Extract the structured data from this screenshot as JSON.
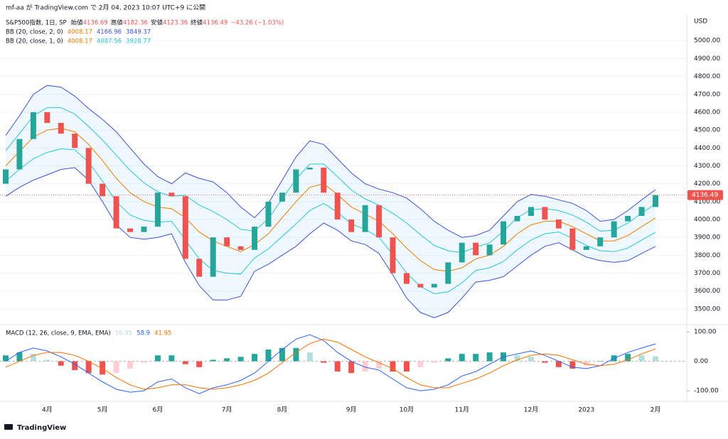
{
  "header": {
    "published": "mf-aa が TradingView.com で 2月 04, 2023 10:07 UTC+9 に公開"
  },
  "footer": {
    "brand": "TradingView"
  },
  "chart_data": [
    {
      "type": "candlestick",
      "title": "S&P500指数, 1日, SP",
      "ohlc": {
        "labels": [
          "始値",
          "高値",
          "安値",
          "終値"
        ],
        "values": [
          4136.69,
          4182.36,
          4123.36,
          4136.49
        ]
      },
      "change": "−43.26 (−1.03%)",
      "currency": "USD",
      "categories": [
        null,
        null,
        null,
        "4月",
        null,
        null,
        null,
        "5月",
        null,
        null,
        null,
        "6月",
        null,
        null,
        null,
        null,
        "7月",
        null,
        null,
        null,
        "8月",
        null,
        null,
        null,
        null,
        "9月",
        null,
        null,
        null,
        "10月",
        null,
        null,
        null,
        "11月",
        null,
        null,
        null,
        null,
        "12月",
        null,
        null,
        null,
        "2023",
        null,
        null,
        null,
        null,
        "2月"
      ],
      "open": [
        4200,
        4280,
        4450,
        4600,
        4540,
        4480,
        4400,
        4200,
        4130,
        3950,
        3930,
        3960,
        4150,
        4130,
        3780,
        3680,
        3900,
        3850,
        3830,
        3960,
        4100,
        4150,
        4280,
        4290,
        4150,
        4000,
        3930,
        4080,
        3900,
        3700,
        3640,
        3620,
        3640,
        3760,
        3870,
        3800,
        3860,
        3990,
        4020,
        4070,
        4000,
        3950,
        3830,
        3850,
        3900,
        3990,
        4020,
        4070
      ],
      "close": [
        4280,
        4450,
        4600,
        4540,
        4480,
        4400,
        4200,
        4130,
        3950,
        3930,
        3960,
        4150,
        4130,
        3780,
        3680,
        3900,
        3850,
        3830,
        3960,
        4100,
        4150,
        4280,
        4290,
        4150,
        4000,
        3930,
        4080,
        3900,
        3700,
        3640,
        3620,
        3640,
        3760,
        3870,
        3800,
        3860,
        3990,
        4020,
        4070,
        4000,
        3950,
        3830,
        3850,
        3900,
        3990,
        4020,
        4070,
        4136.49
      ],
      "up_color": "#26a69a",
      "down_color": "#ef5350",
      "middle": [
        4300,
        4380,
        4460,
        4500,
        4510,
        4490,
        4420,
        4330,
        4230,
        4150,
        4100,
        4070,
        4060,
        4010,
        3930,
        3880,
        3850,
        3820,
        3860,
        3920,
        4010,
        4100,
        4180,
        4200,
        4140,
        4070,
        4030,
        3990,
        3920,
        3840,
        3770,
        3720,
        3710,
        3730,
        3780,
        3800,
        3850,
        3920,
        3970,
        3990,
        3990,
        3960,
        3920,
        3880,
        3880,
        3910,
        3960,
        4008.17
      ],
      "middle_color": "#f57c00",
      "bands": [
        {
          "name": "BB (20, close, 2, 0)",
          "color": "#3f51d8",
          "upper": [
            4470,
            4580,
            4700,
            4750,
            4740,
            4690,
            4620,
            4560,
            4490,
            4400,
            4310,
            4240,
            4200,
            4260,
            4230,
            4210,
            4150,
            4070,
            4010,
            4090,
            4220,
            4350,
            4440,
            4420,
            4340,
            4260,
            4200,
            4170,
            4150,
            4120,
            4060,
            3990,
            3940,
            3900,
            3910,
            3940,
            4020,
            4100,
            4140,
            4130,
            4110,
            4090,
            4050,
            3990,
            4000,
            4050,
            4110,
            4166.96
          ],
          "lower": [
            4130,
            4180,
            4220,
            4250,
            4280,
            4290,
            4220,
            4100,
            3970,
            3900,
            3890,
            3900,
            3920,
            3760,
            3630,
            3550,
            3550,
            3570,
            3710,
            3750,
            3800,
            3850,
            3920,
            3980,
            3940,
            3880,
            3860,
            3810,
            3690,
            3560,
            3480,
            3450,
            3480,
            3560,
            3650,
            3660,
            3680,
            3740,
            3800,
            3850,
            3870,
            3830,
            3790,
            3770,
            3760,
            3770,
            3810,
            3849.37
          ]
        },
        {
          "name": "BB (20, close, 1, 0)",
          "color": "#26c6da",
          "upper": [
            4385,
            4480,
            4580,
            4625,
            4625,
            4590,
            4520,
            4445,
            4360,
            4275,
            4205,
            4155,
            4130,
            4135,
            4080,
            4045,
            4000,
            3945,
            3935,
            4005,
            4115,
            4225,
            4310,
            4310,
            4240,
            4165,
            4115,
            4080,
            4035,
            3980,
            3915,
            3855,
            3825,
            3815,
            3845,
            3870,
            3935,
            4010,
            4055,
            4060,
            4050,
            4025,
            3985,
            3935,
            3940,
            3980,
            4035,
            4087.56
          ],
          "lower": [
            4215,
            4280,
            4340,
            4375,
            4395,
            4390,
            4320,
            4215,
            4100,
            4025,
            3995,
            3985,
            3990,
            3885,
            3780,
            3715,
            3700,
            3695,
            3785,
            3835,
            3905,
            3975,
            4050,
            4090,
            4040,
            3975,
            3945,
            3900,
            3805,
            3700,
            3625,
            3585,
            3595,
            3645,
            3715,
            3730,
            3765,
            3830,
            3885,
            3920,
            3930,
            3895,
            3855,
            3825,
            3820,
            3840,
            3885,
            3928.77
          ]
        }
      ],
      "ylim": [
        3420,
        5140
      ],
      "yticks": [
        {
          "value": 3500,
          "label": "3500.00"
        },
        {
          "value": 3600,
          "label": "3600.00"
        },
        {
          "value": 3700,
          "label": "3700.00"
        },
        {
          "value": 3800,
          "label": "3800.00"
        },
        {
          "value": 3900,
          "label": "3900.00"
        },
        {
          "value": 4000,
          "label": "4000.00"
        },
        {
          "value": 4100,
          "label": "4100.00"
        },
        {
          "value": 4200,
          "label": "4200.00"
        },
        {
          "value": 4300,
          "label": "4300.00"
        },
        {
          "value": 4400,
          "label": "4400.00"
        },
        {
          "value": 4500,
          "label": "4500.00"
        },
        {
          "value": 4600,
          "label": "4600.00"
        },
        {
          "value": 4700,
          "label": "4700.00"
        },
        {
          "value": 4800,
          "label": "4800.00"
        },
        {
          "value": 4900,
          "label": "4900.00"
        },
        {
          "value": 5000,
          "label": "5000.00"
        }
      ],
      "grid": true
    },
    {
      "type": "macd",
      "title": "MACD (12, 26, close, 9, EMA, EMA)",
      "histogram": [
        20,
        30,
        25,
        5,
        -15,
        -30,
        -40,
        -45,
        -40,
        -25,
        -5,
        20,
        20,
        -10,
        -20,
        5,
        10,
        15,
        25,
        40,
        45,
        45,
        30,
        -5,
        -35,
        -40,
        -35,
        -25,
        -35,
        -35,
        -20,
        -5,
        10,
        25,
        25,
        30,
        30,
        20,
        15,
        -5,
        -20,
        -25,
        -15,
        0,
        20,
        25,
        20,
        16.95
      ],
      "macd": [
        0,
        30,
        45,
        35,
        15,
        -10,
        -40,
        -70,
        -95,
        -105,
        -100,
        -70,
        -60,
        -90,
        -110,
        -90,
        -80,
        -65,
        -40,
        0,
        40,
        75,
        90,
        70,
        30,
        0,
        -20,
        -30,
        -60,
        -90,
        -100,
        -95,
        -80,
        -50,
        -35,
        -10,
        15,
        25,
        35,
        20,
        0,
        -20,
        -25,
        -15,
        10,
        30,
        45,
        58.9
      ],
      "signal": [
        -20,
        0,
        20,
        30,
        30,
        20,
        0,
        -25,
        -55,
        -80,
        -95,
        -90,
        -80,
        -80,
        -90,
        -95,
        -90,
        -80,
        -65,
        -40,
        -5,
        30,
        60,
        75,
        65,
        40,
        15,
        -5,
        -25,
        -55,
        -80,
        -90,
        -90,
        -75,
        -60,
        -40,
        -15,
        5,
        20,
        25,
        20,
        5,
        -10,
        -15,
        -10,
        5,
        25,
        41.95
      ],
      "histogram_color": "#b2dfdb",
      "macd_color": "#2962ff",
      "signal_color": "#ff6d00",
      "ylim": [
        -136,
        117
      ],
      "yticks": [
        {
          "value": 100,
          "label": "100.00"
        },
        {
          "value": 0,
          "label": "0.00"
        },
        {
          "value": -100,
          "label": "-100.00"
        }
      ]
    }
  ]
}
